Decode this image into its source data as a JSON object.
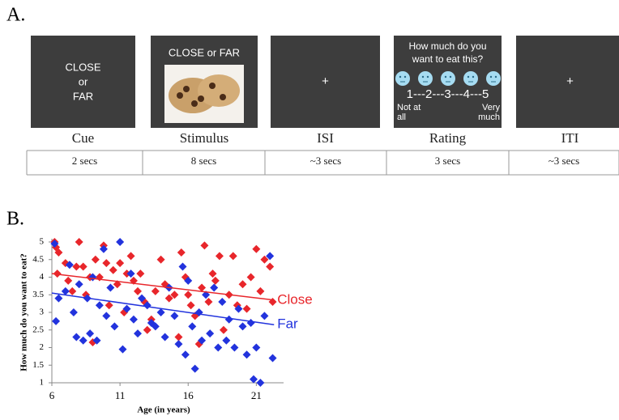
{
  "panel_a": {
    "label": "A.",
    "steps": [
      {
        "name": "Cue",
        "duration": "2 secs",
        "screen": [
          "CLOSE",
          "or",
          "FAR"
        ]
      },
      {
        "name": "Stimulus",
        "duration": "8 secs",
        "screen": [
          "CLOSE or FAR"
        ]
      },
      {
        "name": "ISI",
        "duration": "~3 secs",
        "screen": [
          "+"
        ]
      },
      {
        "name": "Rating",
        "duration": "3 secs",
        "screen": [
          "How much do you",
          "want to eat this?"
        ],
        "scale": "1---2---3---4---5",
        "low": [
          "Not at",
          "all"
        ],
        "high": [
          "Very",
          "much"
        ]
      },
      {
        "name": "ITI",
        "duration": "~3 secs",
        "screen": [
          "+"
        ]
      }
    ]
  },
  "panel_b": {
    "label": "B."
  },
  "chart_data": {
    "type": "scatter",
    "x_label": "Age (in years)",
    "y_label": "How much do you want to eat?",
    "xlim": [
      6,
      23
    ],
    "ylim": [
      1,
      5
    ],
    "xticks": [
      6,
      11,
      16,
      21
    ],
    "yticks": [
      1,
      1.5,
      2,
      2.5,
      3,
      3.5,
      4,
      4.5,
      5
    ],
    "series": [
      {
        "name": "Close",
        "color": "#e8262b",
        "x": [
          6.2,
          6.3,
          6.5,
          6.4,
          7,
          7.2,
          7.5,
          7.8,
          8,
          8.3,
          8.5,
          8.8,
          9,
          9.2,
          9.5,
          9.8,
          10,
          10.2,
          10.5,
          10.8,
          11,
          11.3,
          11.5,
          11.8,
          12,
          12.3,
          12.5,
          12.8,
          13,
          13.3,
          13.6,
          14,
          14.3,
          14.6,
          15,
          15.3,
          15.5,
          15.8,
          16,
          16.2,
          16.5,
          16.8,
          17,
          17.2,
          17.5,
          17.8,
          18,
          18.3,
          18.6,
          19,
          19.3,
          19.6,
          20,
          20.3,
          20.6,
          21,
          21.3,
          21.6,
          22,
          22.2
        ],
        "y": [
          5.0,
          4.85,
          4.7,
          4.1,
          4.4,
          3.9,
          3.6,
          4.3,
          5.0,
          4.3,
          3.5,
          4.0,
          2.15,
          4.5,
          4.0,
          4.9,
          4.4,
          3.2,
          4.2,
          3.8,
          4.4,
          3.0,
          4.1,
          4.6,
          3.9,
          3.6,
          4.1,
          3.3,
          2.5,
          2.8,
          3.6,
          4.5,
          3.8,
          3.4,
          3.5,
          2.3,
          4.7,
          4.0,
          3.5,
          3.2,
          2.9,
          2.1,
          3.7,
          4.9,
          3.3,
          4.1,
          3.9,
          4.6,
          2.5,
          3.5,
          4.6,
          3.2,
          3.8,
          3.1,
          4.0,
          4.8,
          3.6,
          4.5,
          4.3,
          3.3
        ],
        "trend_x": [
          6,
          22.3
        ],
        "trend_y": [
          4.1,
          3.35
        ]
      },
      {
        "name": "Far",
        "color": "#2233dd",
        "x": [
          6.2,
          6.3,
          6.5,
          7,
          7.3,
          7.6,
          7.8,
          8,
          8.3,
          8.6,
          8.8,
          9,
          9.3,
          9.5,
          9.8,
          10,
          10.3,
          10.6,
          11,
          11.2,
          11.5,
          11.8,
          12,
          12.3,
          12.6,
          13,
          13.3,
          13.6,
          14,
          14.3,
          14.6,
          15,
          15.3,
          15.6,
          15.8,
          16,
          16.3,
          16.5,
          16.8,
          17,
          17.3,
          17.6,
          17.9,
          18.2,
          18.5,
          18.8,
          19,
          19.4,
          19.7,
          20,
          20.3,
          20.6,
          20.8,
          21,
          21.3,
          21.6,
          22,
          22.2
        ],
        "y": [
          4.95,
          2.75,
          3.4,
          3.6,
          4.35,
          3.0,
          2.3,
          3.8,
          2.2,
          3.4,
          2.4,
          4.0,
          2.2,
          3.2,
          4.8,
          2.9,
          3.7,
          2.6,
          5.0,
          1.95,
          3.1,
          4.1,
          2.8,
          2.4,
          3.4,
          3.2,
          2.7,
          2.6,
          3.0,
          2.3,
          3.7,
          2.9,
          2.1,
          4.3,
          1.8,
          3.9,
          2.6,
          1.4,
          3.0,
          2.2,
          3.5,
          2.4,
          3.7,
          2.0,
          3.3,
          2.2,
          2.8,
          2.0,
          3.1,
          2.6,
          1.8,
          2.7,
          1.1,
          2.0,
          1.0,
          2.9,
          4.6,
          1.7
        ],
        "trend_x": [
          6,
          22.3
        ],
        "trend_y": [
          3.55,
          2.65
        ]
      }
    ]
  }
}
